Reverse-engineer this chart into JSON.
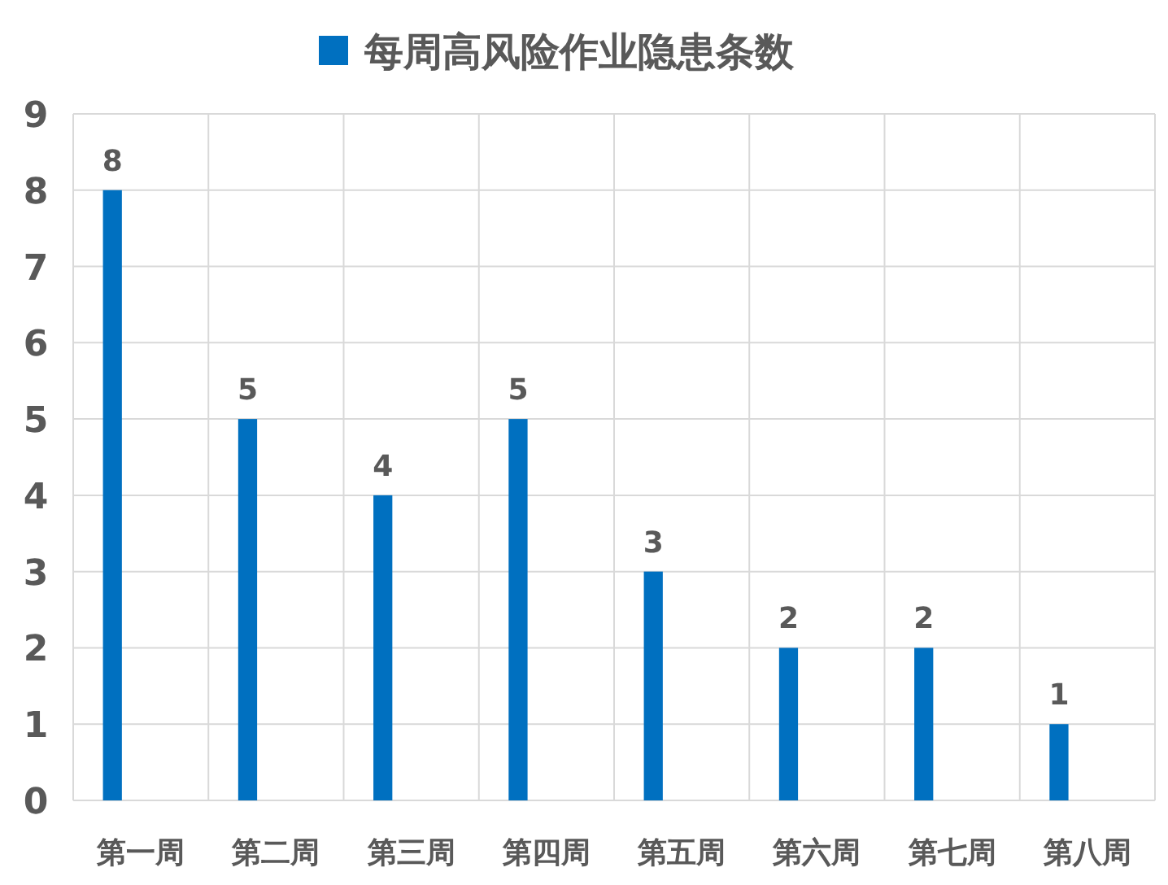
{
  "chart_data": {
    "type": "bar",
    "categories": [
      "第一周",
      "第二周",
      "第三周",
      "第四周",
      "第五周",
      "第六周",
      "第七周",
      "第八周"
    ],
    "series": [
      {
        "name": "每周高风险作业隐患条数",
        "color": "#0070c0",
        "values": [
          8,
          5,
          4,
          5,
          3,
          2,
          2,
          1
        ]
      }
    ],
    "ylim": [
      0,
      9
    ],
    "yticks": [
      0,
      1,
      2,
      3,
      4,
      5,
      6,
      7,
      8,
      9
    ],
    "grid": true,
    "legend": "top",
    "data_labels": true
  }
}
